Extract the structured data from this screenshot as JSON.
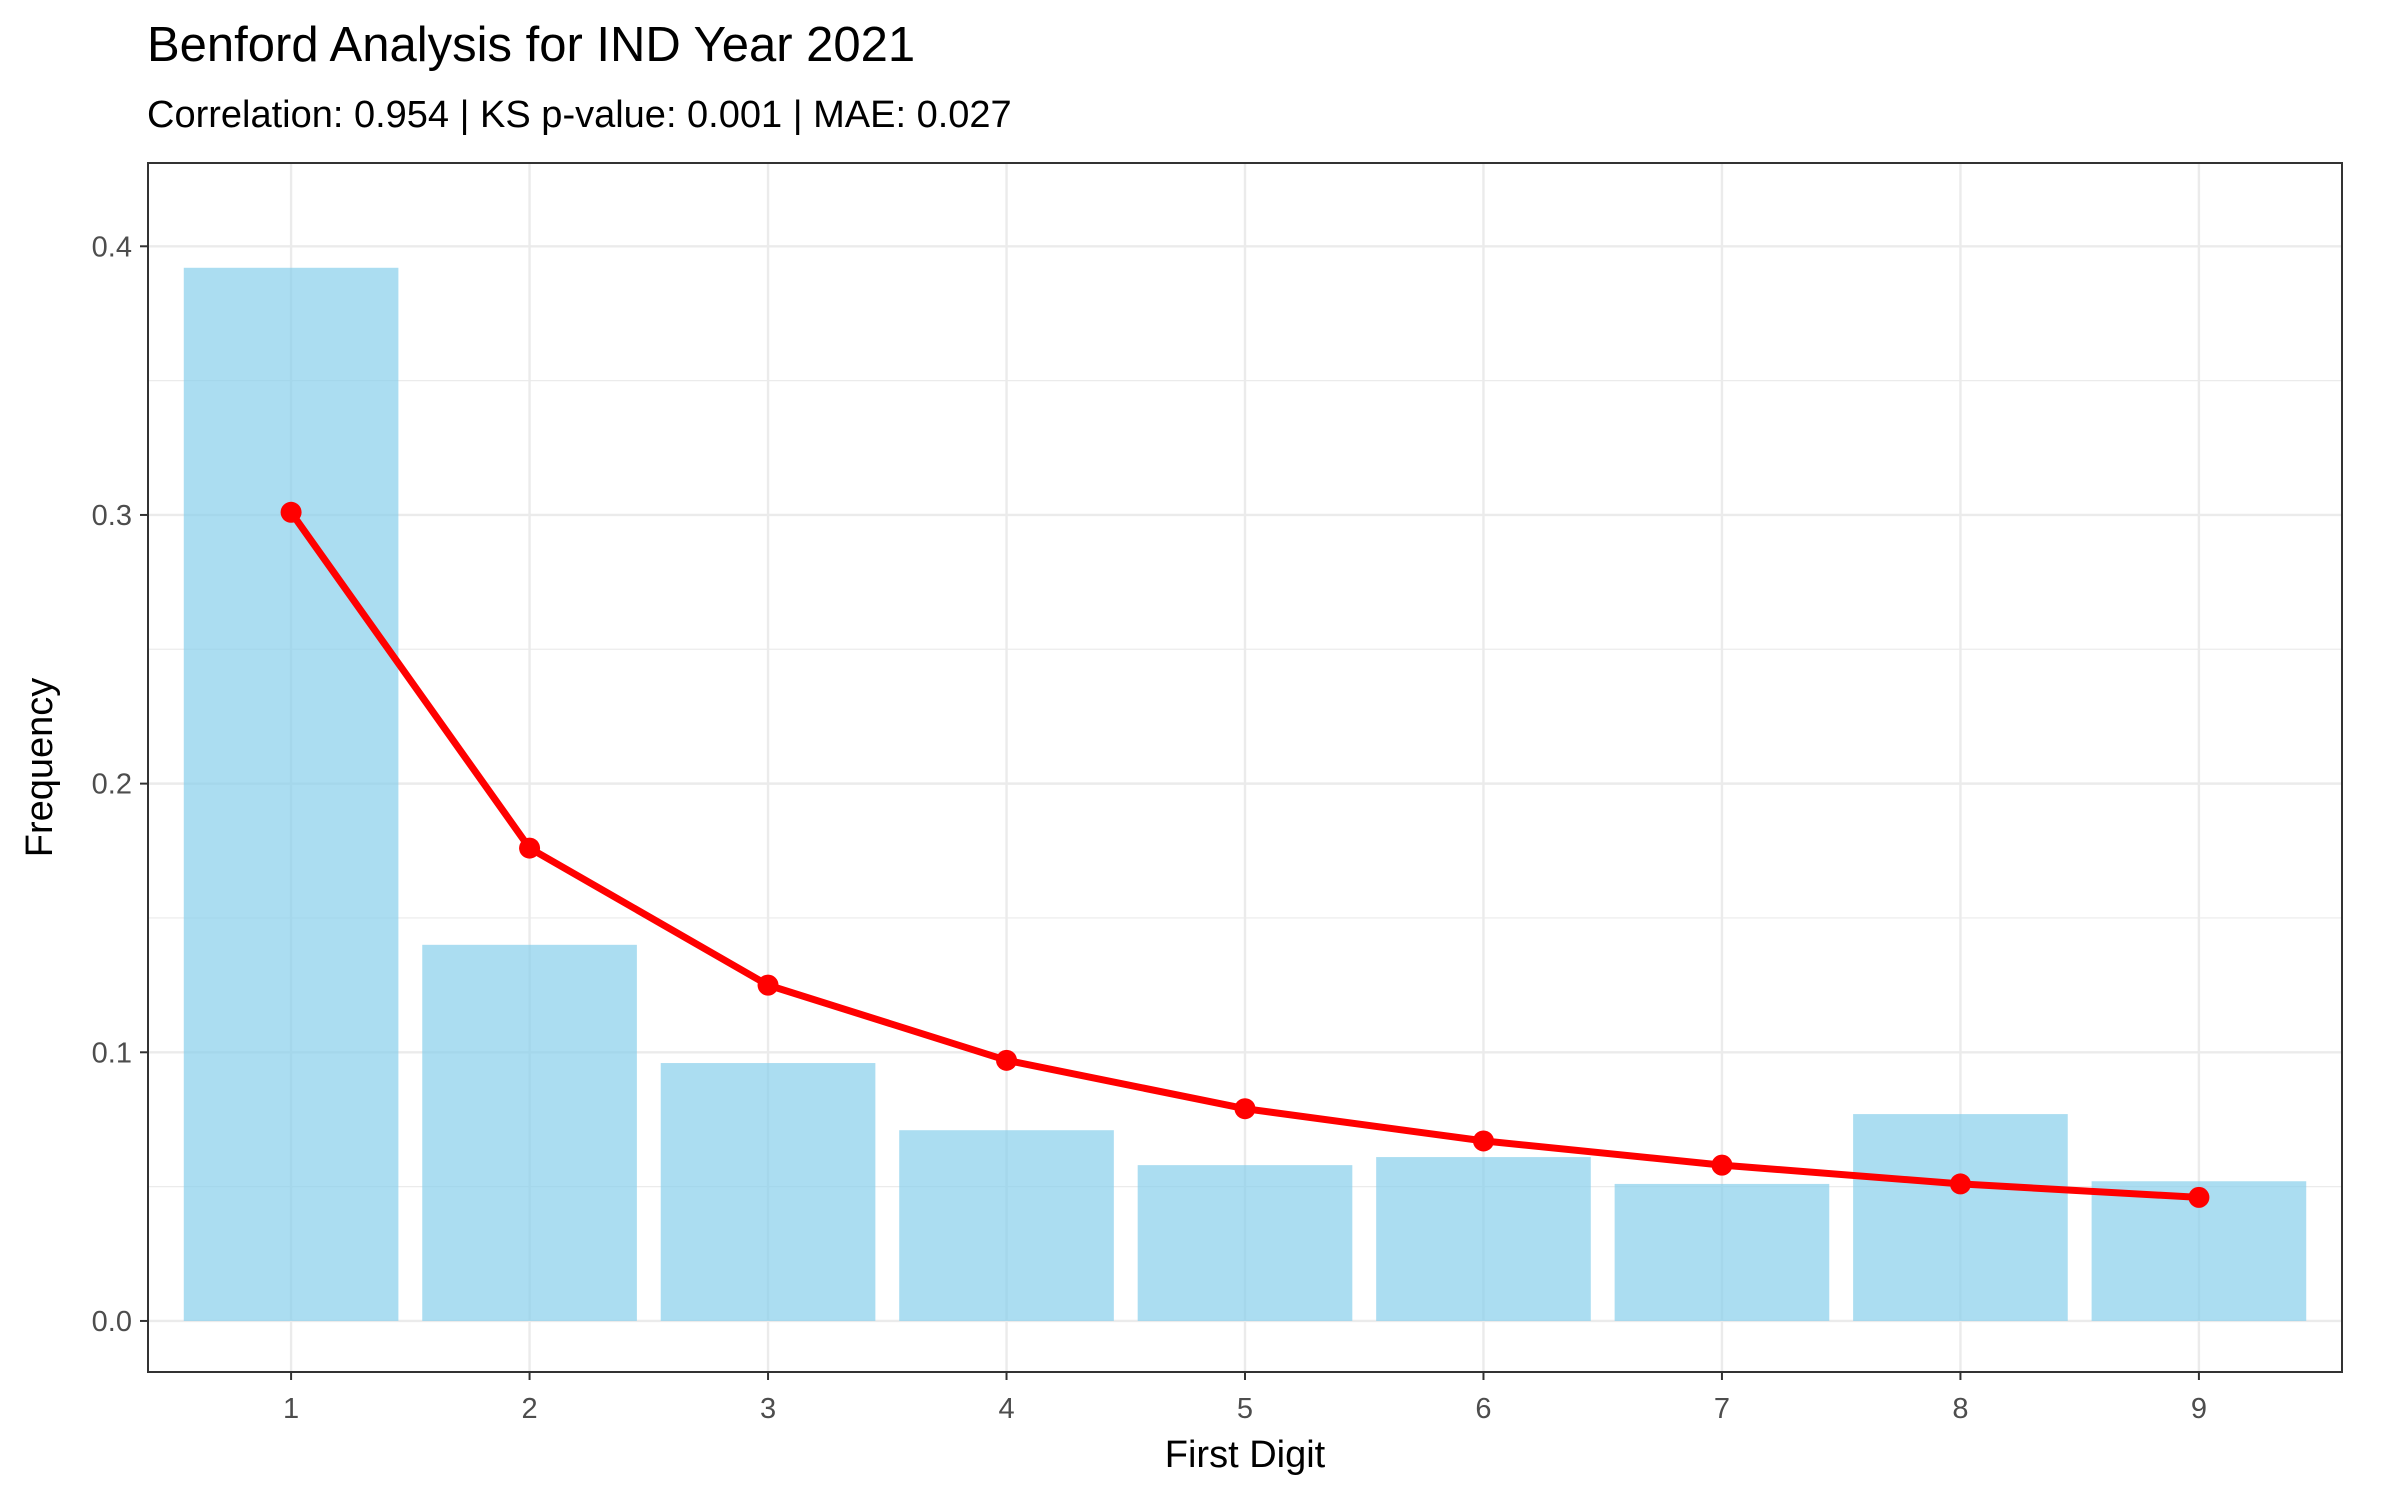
{
  "chart_data": {
    "type": "bar",
    "title": "Benford Analysis for IND Year 2021",
    "subtitle": "Correlation: 0.954 | KS p-value: 0.001 | MAE: 0.027",
    "xlabel": "First Digit",
    "ylabel": "Frequency",
    "categories": [
      "1",
      "2",
      "3",
      "4",
      "5",
      "6",
      "7",
      "8",
      "9"
    ],
    "ylim": [
      -0.019,
      0.431
    ],
    "yticks": [
      0.0,
      0.1,
      0.2,
      0.3,
      0.4
    ],
    "ytick_labels": [
      "0.0",
      "0.1",
      "0.2",
      "0.3",
      "0.4"
    ],
    "grid": true,
    "series": [
      {
        "kind": "bar",
        "values": [
          0.392,
          0.14,
          0.096,
          0.071,
          0.058,
          0.061,
          0.051,
          0.077,
          0.052
        ],
        "color": "#87CEEB"
      },
      {
        "kind": "line",
        "values": [
          0.301,
          0.176,
          0.125,
          0.097,
          0.079,
          0.067,
          0.058,
          0.051,
          0.046
        ],
        "color": "#FF0000"
      }
    ]
  }
}
